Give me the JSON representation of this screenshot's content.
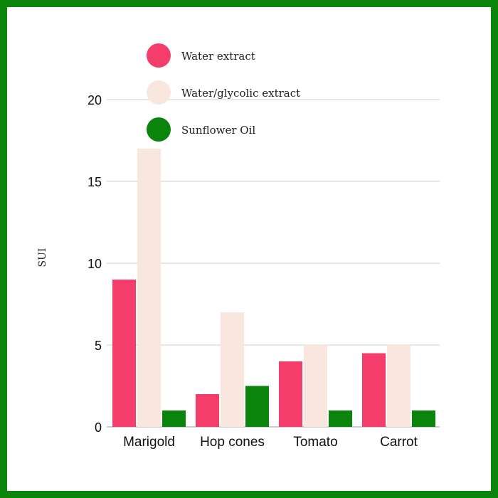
{
  "chart_data": {
    "type": "bar",
    "categories": [
      "Marigold",
      "Hop cones",
      "Tomato",
      "Carrot"
    ],
    "series": [
      {
        "name": "Water extract",
        "color": "#f53d6b",
        "values": [
          9,
          2,
          4,
          4.5
        ]
      },
      {
        "name": "Water/glycolic extract",
        "color": "#f9e6de",
        "values": [
          17,
          7,
          5,
          5
        ]
      },
      {
        "name": "Sunflower Oil",
        "color": "#0a840a",
        "values": [
          1,
          2.5,
          1,
          1
        ]
      }
    ],
    "ylabel": "SUI",
    "ylim": [
      0,
      20
    ],
    "yticks": [
      0,
      5,
      10,
      15,
      20
    ],
    "grid": true,
    "legend_position": "top-left"
  },
  "frame_color": "#0a840a"
}
